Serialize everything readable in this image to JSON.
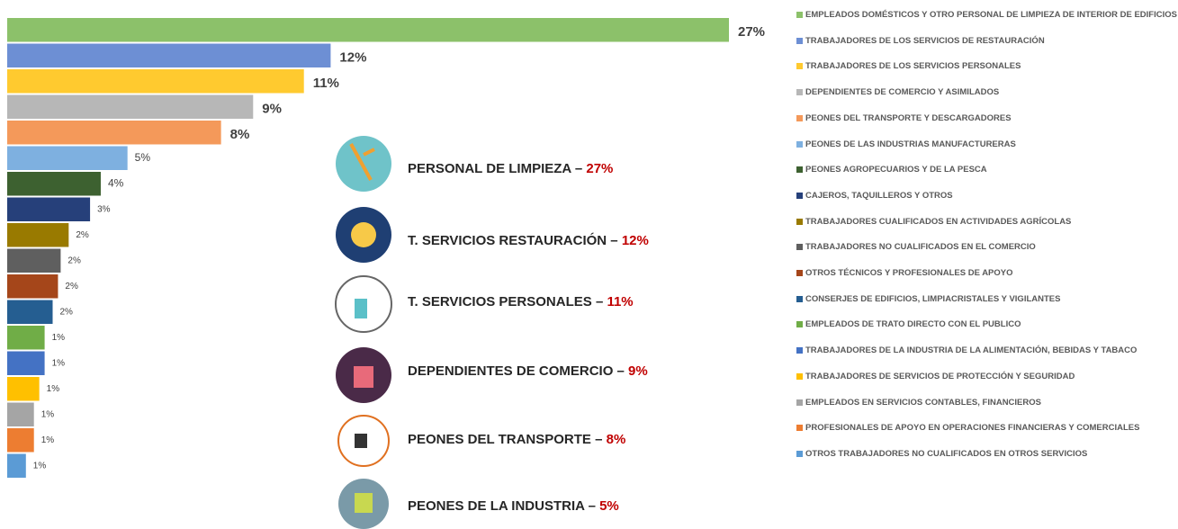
{
  "chart_data": {
    "type": "bar",
    "orientation": "horizontal",
    "categories": [
      "EMPLEADOS DOMÉSTICOS Y OTRO PERSONAL DE LIMPIEZA DE INTERIOR DE EDIFICIOS",
      "TRABAJADORES DE LOS SERVICIOS DE RESTAURACIÓN",
      "TRABAJADORES DE LOS SERVICIOS PERSONALES",
      "DEPENDIENTES DE COMERCIO Y ASIMILADOS",
      "PEONES DEL TRANSPORTE Y DESCARGADORES",
      "PEONES DE LAS INDUSTRIAS MANUFACTURERAS",
      "PEONES AGROPECUARIOS Y DE LA PESCA",
      "CAJEROS, TAQUILLEROS Y OTROS",
      "TRABAJADORES CUALIFICADOS EN ACTIVIDADES AGRÍCOLAS",
      "TRABAJADORES NO CUALIFICADOS EN EL COMERCIO",
      "OTROS TÉCNICOS Y PROFESIONALES DE APOYO",
      "CONSERJES DE EDIFICIOS, LIMPIACRISTALES Y VIGILANTES",
      "EMPLEADOS DE TRATO DIRECTO CON EL PUBLICO",
      "TRABAJADORES DE LA INDUSTRIA DE LA ALIMENTACIÓN, BEBIDAS Y TABACO",
      "TRABAJADORES DE SERVICIOS DE PROTECCIÓN Y SEGURIDAD",
      "EMPLEADOS EN SERVICIOS CONTABLES, FINANCIEROS",
      "PROFESIONALES DE APOYO EN OPERACIONES FINANCIERAS Y COMERCIALES",
      "OTROS TRABAJADORES NO CUALIFICADOS EN OTROS SERVICIOS"
    ],
    "values": [
      27,
      12.1,
      11.1,
      9.2,
      8,
      4.5,
      3.5,
      3.1,
      2.3,
      2,
      1.9,
      1.7,
      1.4,
      1.4,
      1.2,
      1,
      1,
      0.7
    ],
    "value_labels": [
      "27%",
      "12%",
      "11%",
      "9%",
      "8%",
      "5%",
      "4%",
      "3%",
      "2%",
      "2%",
      "2%",
      "2%",
      "1%",
      "1%",
      "1%",
      "1%",
      "1%",
      "1%"
    ],
    "colors": [
      "#8cc16a",
      "#6d8fd4",
      "#ffca2f",
      "#b7b7b7",
      "#f4995a",
      "#7eb0e0",
      "#3d6130",
      "#26407a",
      "#997a00",
      "#5f5f5f",
      "#a5461a",
      "#255e91",
      "#70ad47",
      "#4472c4",
      "#ffc000",
      "#a5a5a5",
      "#ed7d31",
      "#5b9bd5"
    ],
    "callouts": [
      {
        "label": "PERSONAL DE LIMPIEZA –",
        "value": "27%"
      },
      {
        "label": "T. SERVICIOS RESTAURACIÓN –",
        "value": "12%"
      },
      {
        "label": "T. SERVICIOS PERSONALES –",
        "value": "11%"
      },
      {
        "label": "DEPENDIENTES DE COMERCIO –",
        "value": "9%"
      },
      {
        "label": "PEONES DEL TRANSPORTE –",
        "value": "8%"
      },
      {
        "label": "PEONES DE LA INDUSTRIA –",
        "value": "5%"
      }
    ]
  }
}
